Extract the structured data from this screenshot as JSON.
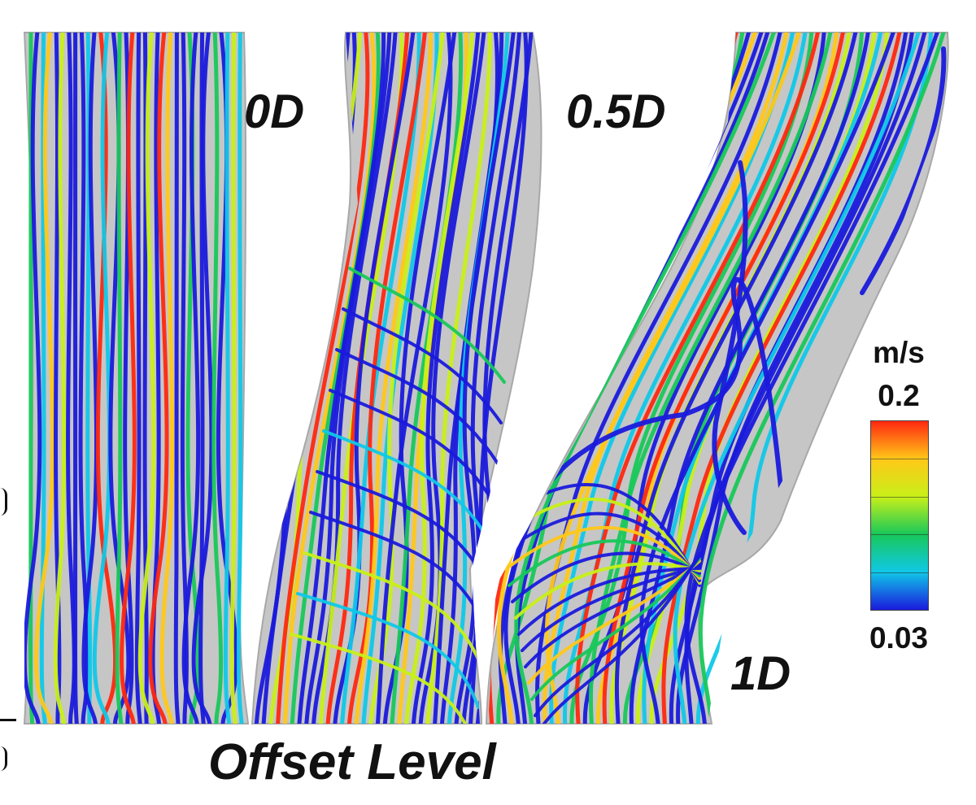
{
  "panels": [
    {
      "label": "0D"
    },
    {
      "label": "0.5D"
    },
    {
      "label": "1D"
    }
  ],
  "xlabel": "Offset Level",
  "colorbar": {
    "unit": "m/s",
    "max": "0.2",
    "min": "0.03",
    "colors": [
      "#1a1adc",
      "#10c8e8",
      "#18c85a",
      "#c8f018",
      "#ffc818",
      "#ff2810"
    ]
  },
  "colors": {
    "vessel": "#c8c8c8",
    "background": "#ffffff"
  }
}
